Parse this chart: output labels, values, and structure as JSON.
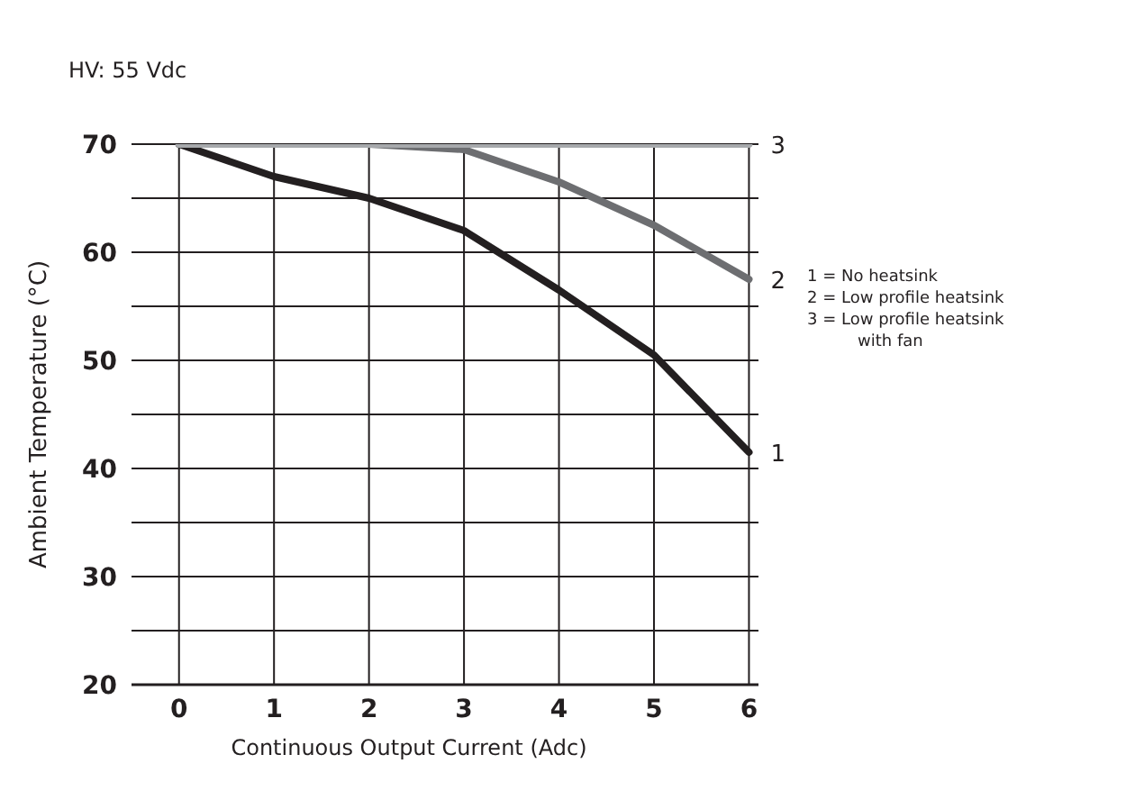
{
  "chart_data": {
    "type": "line",
    "title": "HV: 55 Vdc",
    "xlabel": "Continuous Output Current (Adc)",
    "ylabel": "Ambient Temperature (°C)",
    "x": [
      0,
      1,
      2,
      3,
      4,
      5,
      6
    ],
    "series": [
      {
        "name": "1",
        "color": "#231f20",
        "values": [
          70,
          67,
          65,
          62,
          56.5,
          50.5,
          41.5
        ]
      },
      {
        "name": "2",
        "color": "#6d6e71",
        "values": [
          70,
          70,
          70,
          69.5,
          66.5,
          62.5,
          57.5
        ]
      },
      {
        "name": "3",
        "color": "#a7a9ac",
        "values": [
          70,
          70,
          70,
          70,
          70,
          70,
          70
        ]
      }
    ],
    "xlim": [
      -0.5,
      6.1
    ],
    "xticks": [
      0,
      1,
      2,
      3,
      4,
      5,
      6
    ],
    "ylim": [
      20,
      70
    ],
    "yticks": [
      20,
      {
        "value": 25,
        "label": null
      },
      30,
      {
        "value": 35,
        "label": null
      },
      40,
      {
        "value": 45,
        "label": null
      },
      50,
      {
        "value": 55,
        "label": null
      },
      60,
      {
        "value": 65,
        "label": null
      },
      70
    ],
    "annotations": [
      "1 =  No heatsink",
      "2 =  Low profile heatsink",
      "3 =  Low profile heatsink with fan"
    ],
    "grid": true,
    "marker": "none",
    "line_style": "solid"
  }
}
